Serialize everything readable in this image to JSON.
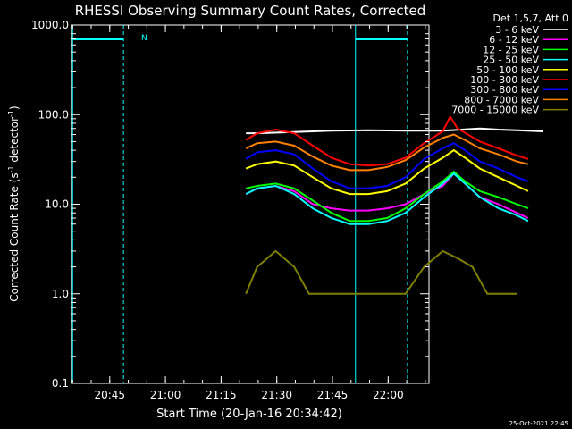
{
  "chart_data": {
    "type": "line",
    "title": "RHESSI Observing Summary Count Rates, Corrected",
    "xlabel": "Start Time (20-Jan-16 20:34:42)",
    "ylabel_main": "Corrected Count Rate (s",
    "ylabel_sup1": "-1",
    "ylabel_mid": " detector",
    "ylabel_sup2": "-1",
    "ylabel_end": ")",
    "footer_timestamp": "25-Oct-2021 22:45",
    "legend_header": "Det 1,5,7, Att 0",
    "y_scale": "log",
    "ylim": [
      0.1,
      1000
    ],
    "y_ticks": [
      "0.1",
      "1.0",
      "10.0",
      "100.0",
      "1000.0"
    ],
    "x_range_minutes": [
      "20:34:42",
      "22:11:00"
    ],
    "x_ticks": [
      "20:45",
      "21:00",
      "21:15",
      "21:30",
      "21:45",
      "22:00"
    ],
    "night_marker_label": "N",
    "series": [
      {
        "name": "3 - 6 keV",
        "color": "#ffffff",
        "points": [
          [
            47,
            62
          ],
          [
            50,
            62
          ],
          [
            60,
            64
          ],
          [
            70,
            66
          ],
          [
            80,
            67
          ],
          [
            90,
            66
          ],
          [
            100,
            66
          ],
          [
            110,
            70
          ],
          [
            115,
            68
          ],
          [
            120,
            67
          ],
          [
            127,
            65
          ]
        ]
      },
      {
        "name": "6 - 12 keV",
        "color": "#ff00ff",
        "points": [
          [
            47,
            13
          ],
          [
            50,
            15
          ],
          [
            55,
            16
          ],
          [
            60,
            14
          ],
          [
            65,
            10
          ],
          [
            70,
            9
          ],
          [
            75,
            8.5
          ],
          [
            80,
            8.5
          ],
          [
            85,
            9
          ],
          [
            90,
            10
          ],
          [
            95,
            13
          ],
          [
            100,
            16
          ],
          [
            103,
            22
          ],
          [
            106,
            17
          ],
          [
            110,
            12
          ],
          [
            115,
            10
          ],
          [
            120,
            8
          ],
          [
            123,
            7
          ]
        ]
      },
      {
        "name": "12 - 25 keV",
        "color": "#00ff00",
        "points": [
          [
            47,
            15
          ],
          [
            50,
            16
          ],
          [
            55,
            17
          ],
          [
            60,
            15
          ],
          [
            65,
            11
          ],
          [
            70,
            8
          ],
          [
            75,
            6.5
          ],
          [
            80,
            6.5
          ],
          [
            85,
            7
          ],
          [
            90,
            9
          ],
          [
            95,
            13
          ],
          [
            100,
            18
          ],
          [
            103,
            23
          ],
          [
            106,
            18
          ],
          [
            110,
            14
          ],
          [
            115,
            12
          ],
          [
            120,
            10
          ],
          [
            123,
            9
          ]
        ]
      },
      {
        "name": "25 - 50 keV",
        "color": "#00ffff",
        "points": [
          [
            47,
            13
          ],
          [
            50,
            15
          ],
          [
            55,
            16
          ],
          [
            60,
            13
          ],
          [
            65,
            9
          ],
          [
            70,
            7
          ],
          [
            75,
            6
          ],
          [
            80,
            6
          ],
          [
            85,
            6.5
          ],
          [
            90,
            8
          ],
          [
            95,
            12
          ],
          [
            100,
            17
          ],
          [
            103,
            22
          ],
          [
            106,
            17
          ],
          [
            110,
            12
          ],
          [
            115,
            9
          ],
          [
            120,
            7.5
          ],
          [
            123,
            6.5
          ]
        ]
      },
      {
        "name": "50 - 100 keV",
        "color": "#ffff00",
        "points": [
          [
            47,
            25
          ],
          [
            50,
            28
          ],
          [
            55,
            30
          ],
          [
            60,
            27
          ],
          [
            65,
            20
          ],
          [
            70,
            15
          ],
          [
            75,
            13
          ],
          [
            80,
            13
          ],
          [
            85,
            14
          ],
          [
            90,
            17
          ],
          [
            95,
            25
          ],
          [
            100,
            33
          ],
          [
            103,
            40
          ],
          [
            106,
            33
          ],
          [
            110,
            25
          ],
          [
            115,
            20
          ],
          [
            120,
            16
          ],
          [
            123,
            14
          ]
        ]
      },
      {
        "name": "100 - 300 keV",
        "color": "#ff0000",
        "points": [
          [
            47,
            52
          ],
          [
            50,
            62
          ],
          [
            55,
            68
          ],
          [
            60,
            62
          ],
          [
            65,
            45
          ],
          [
            70,
            33
          ],
          [
            75,
            28
          ],
          [
            80,
            27
          ],
          [
            85,
            28
          ],
          [
            90,
            33
          ],
          [
            95,
            48
          ],
          [
            100,
            65
          ],
          [
            102,
            95
          ],
          [
            104,
            70
          ],
          [
            110,
            50
          ],
          [
            115,
            42
          ],
          [
            120,
            35
          ],
          [
            123,
            32
          ]
        ]
      },
      {
        "name": "300 - 800 keV",
        "color": "#0000ff",
        "points": [
          [
            47,
            32
          ],
          [
            50,
            38
          ],
          [
            55,
            40
          ],
          [
            60,
            36
          ],
          [
            65,
            25
          ],
          [
            70,
            18
          ],
          [
            75,
            15
          ],
          [
            80,
            15
          ],
          [
            85,
            16
          ],
          [
            90,
            20
          ],
          [
            95,
            32
          ],
          [
            100,
            42
          ],
          [
            103,
            48
          ],
          [
            106,
            40
          ],
          [
            110,
            30
          ],
          [
            115,
            25
          ],
          [
            120,
            20
          ],
          [
            123,
            18
          ]
        ]
      },
      {
        "name": "800 - 7000 keV",
        "color": "#ff8000",
        "points": [
          [
            47,
            42
          ],
          [
            50,
            48
          ],
          [
            55,
            50
          ],
          [
            60,
            45
          ],
          [
            65,
            34
          ],
          [
            70,
            27
          ],
          [
            75,
            24
          ],
          [
            80,
            24
          ],
          [
            85,
            26
          ],
          [
            90,
            31
          ],
          [
            95,
            43
          ],
          [
            100,
            55
          ],
          [
            103,
            60
          ],
          [
            106,
            52
          ],
          [
            110,
            42
          ],
          [
            115,
            36
          ],
          [
            120,
            30
          ],
          [
            123,
            28
          ]
        ]
      },
      {
        "name": "7000 - 15000 keV",
        "color": "#808000",
        "points": [
          [
            47,
            1.0
          ],
          [
            50,
            2.0
          ],
          [
            55,
            3.0
          ],
          [
            60,
            2.0
          ],
          [
            64,
            1.0
          ],
          [
            70,
            1.0
          ],
          [
            80,
            1.0
          ],
          [
            90,
            1.0
          ],
          [
            95,
            2.0
          ],
          [
            100,
            3.0
          ],
          [
            104,
            2.5
          ],
          [
            108,
            2.0
          ],
          [
            112,
            1.0
          ],
          [
            120,
            1.0
          ]
        ]
      }
    ]
  }
}
